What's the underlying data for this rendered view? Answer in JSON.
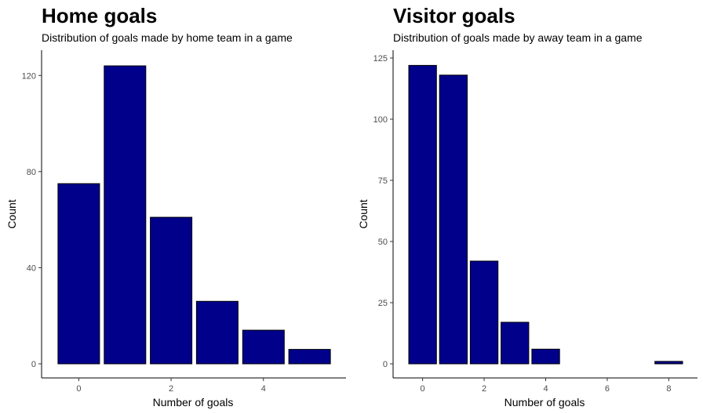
{
  "chart_data": [
    {
      "type": "bar",
      "title": "Home goals",
      "subtitle": "Distribution of goals made by home team in a game",
      "xlabel": "Number of goals",
      "ylabel": "Count",
      "x": [
        0,
        1,
        2,
        3,
        4,
        5
      ],
      "values": [
        75,
        124,
        61,
        26,
        14,
        6
      ],
      "xlim": [
        -0.5,
        5.5
      ],
      "ylim": [
        0,
        124
      ],
      "x_ticks": [
        0,
        2,
        4
      ],
      "y_ticks": [
        0,
        40,
        80,
        120
      ],
      "bar_color": "#00008B",
      "grid": false
    },
    {
      "type": "bar",
      "title": "Visitor goals",
      "subtitle": "Distribution of goals made by away team in a game",
      "xlabel": "Number of goals",
      "ylabel": "Count",
      "x": [
        0,
        1,
        2,
        3,
        4,
        5,
        6,
        7,
        8
      ],
      "values": [
        122,
        118,
        42,
        17,
        6,
        0,
        0,
        0,
        1
      ],
      "xlim": [
        -0.5,
        8.5
      ],
      "ylim": [
        0,
        125
      ],
      "x_ticks": [
        0,
        2,
        4,
        6,
        8
      ],
      "y_ticks": [
        0,
        25,
        50,
        75,
        100,
        125
      ],
      "bar_color": "#00008B",
      "grid": false
    }
  ]
}
